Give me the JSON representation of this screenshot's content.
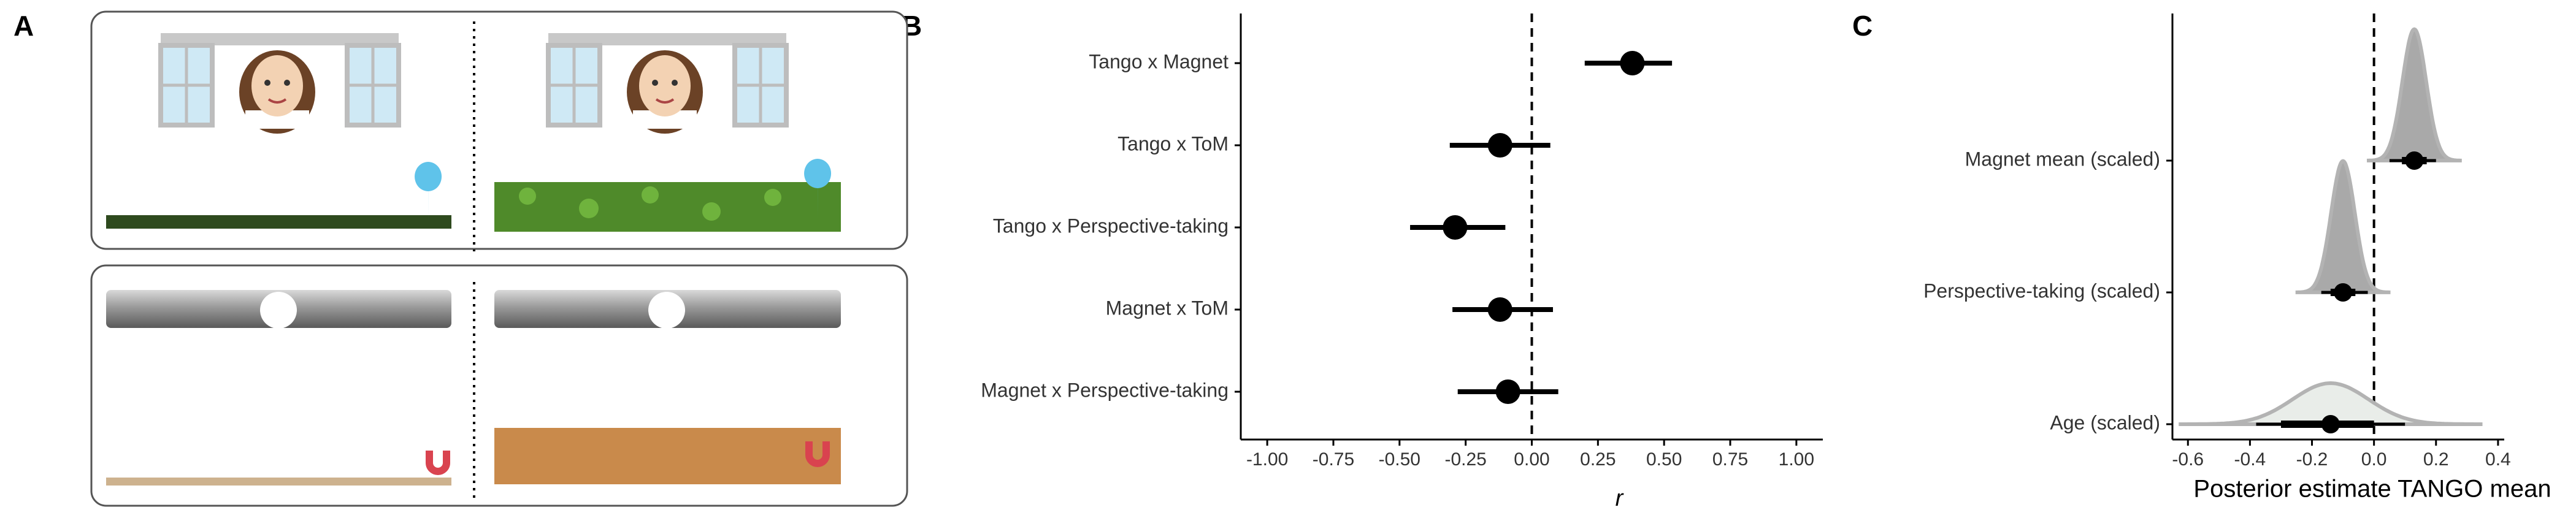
{
  "panel_labels": [
    "A",
    "B",
    "C"
  ],
  "chart_data": [
    {
      "type": "forest",
      "categories": [
        "Tango x Magnet",
        "Tango x ToM",
        "Tango x Perspective-taking",
        "Magnet x ToM",
        "Magnet x Perspective-taking"
      ],
      "values": [
        0.38,
        -0.12,
        -0.29,
        -0.12,
        -0.09
      ],
      "ci": [
        [
          0.2,
          0.53
        ],
        [
          -0.31,
          0.07
        ],
        [
          -0.46,
          -0.1
        ],
        [
          -0.3,
          0.08
        ],
        [
          -0.28,
          0.1
        ]
      ],
      "color": "#000000",
      "reference_line": 0,
      "xlabel": "r",
      "xlim": [
        -1.1,
        1.1
      ],
      "xticks": [
        {
          "value": -1,
          "label": "-1.00"
        },
        {
          "value": -0.75,
          "label": "-0.75"
        },
        {
          "value": -0.5,
          "label": "-0.50"
        },
        {
          "value": -0.25,
          "label": "-0.25"
        },
        {
          "value": 0,
          "label": "0.00"
        },
        {
          "value": 0.25,
          "label": "0.25"
        },
        {
          "value": 0.5,
          "label": "0.50"
        },
        {
          "value": 0.75,
          "label": "0.75"
        },
        {
          "value": 1,
          "label": "1.00"
        }
      ]
    },
    {
      "type": "posterior",
      "categories": [
        "Magnet mean (scaled)",
        "Perspective-taking (scaled)",
        "Age (scaled)"
      ],
      "values": [
        0.13,
        -0.1,
        -0.14
      ],
      "inner": [
        [
          0.09,
          0.17
        ],
        [
          -0.14,
          -0.06
        ],
        [
          -0.3,
          0.0
        ]
      ],
      "outer": [
        [
          0.05,
          0.2
        ],
        [
          -0.17,
          -0.02
        ],
        [
          -0.38,
          0.1
        ]
      ],
      "colors": [
        "#a9a9a9",
        "#a9a9a9",
        "#e9ede9"
      ],
      "reference_line": 0,
      "xlabel": "Posterior estimate TANGO mean",
      "xlim": [
        -0.65,
        0.42
      ],
      "xticks": [
        -0.6,
        -0.4,
        -0.2,
        {
          "value": 0,
          "label": "0.0"
        },
        0.2,
        0.4
      ]
    }
  ]
}
